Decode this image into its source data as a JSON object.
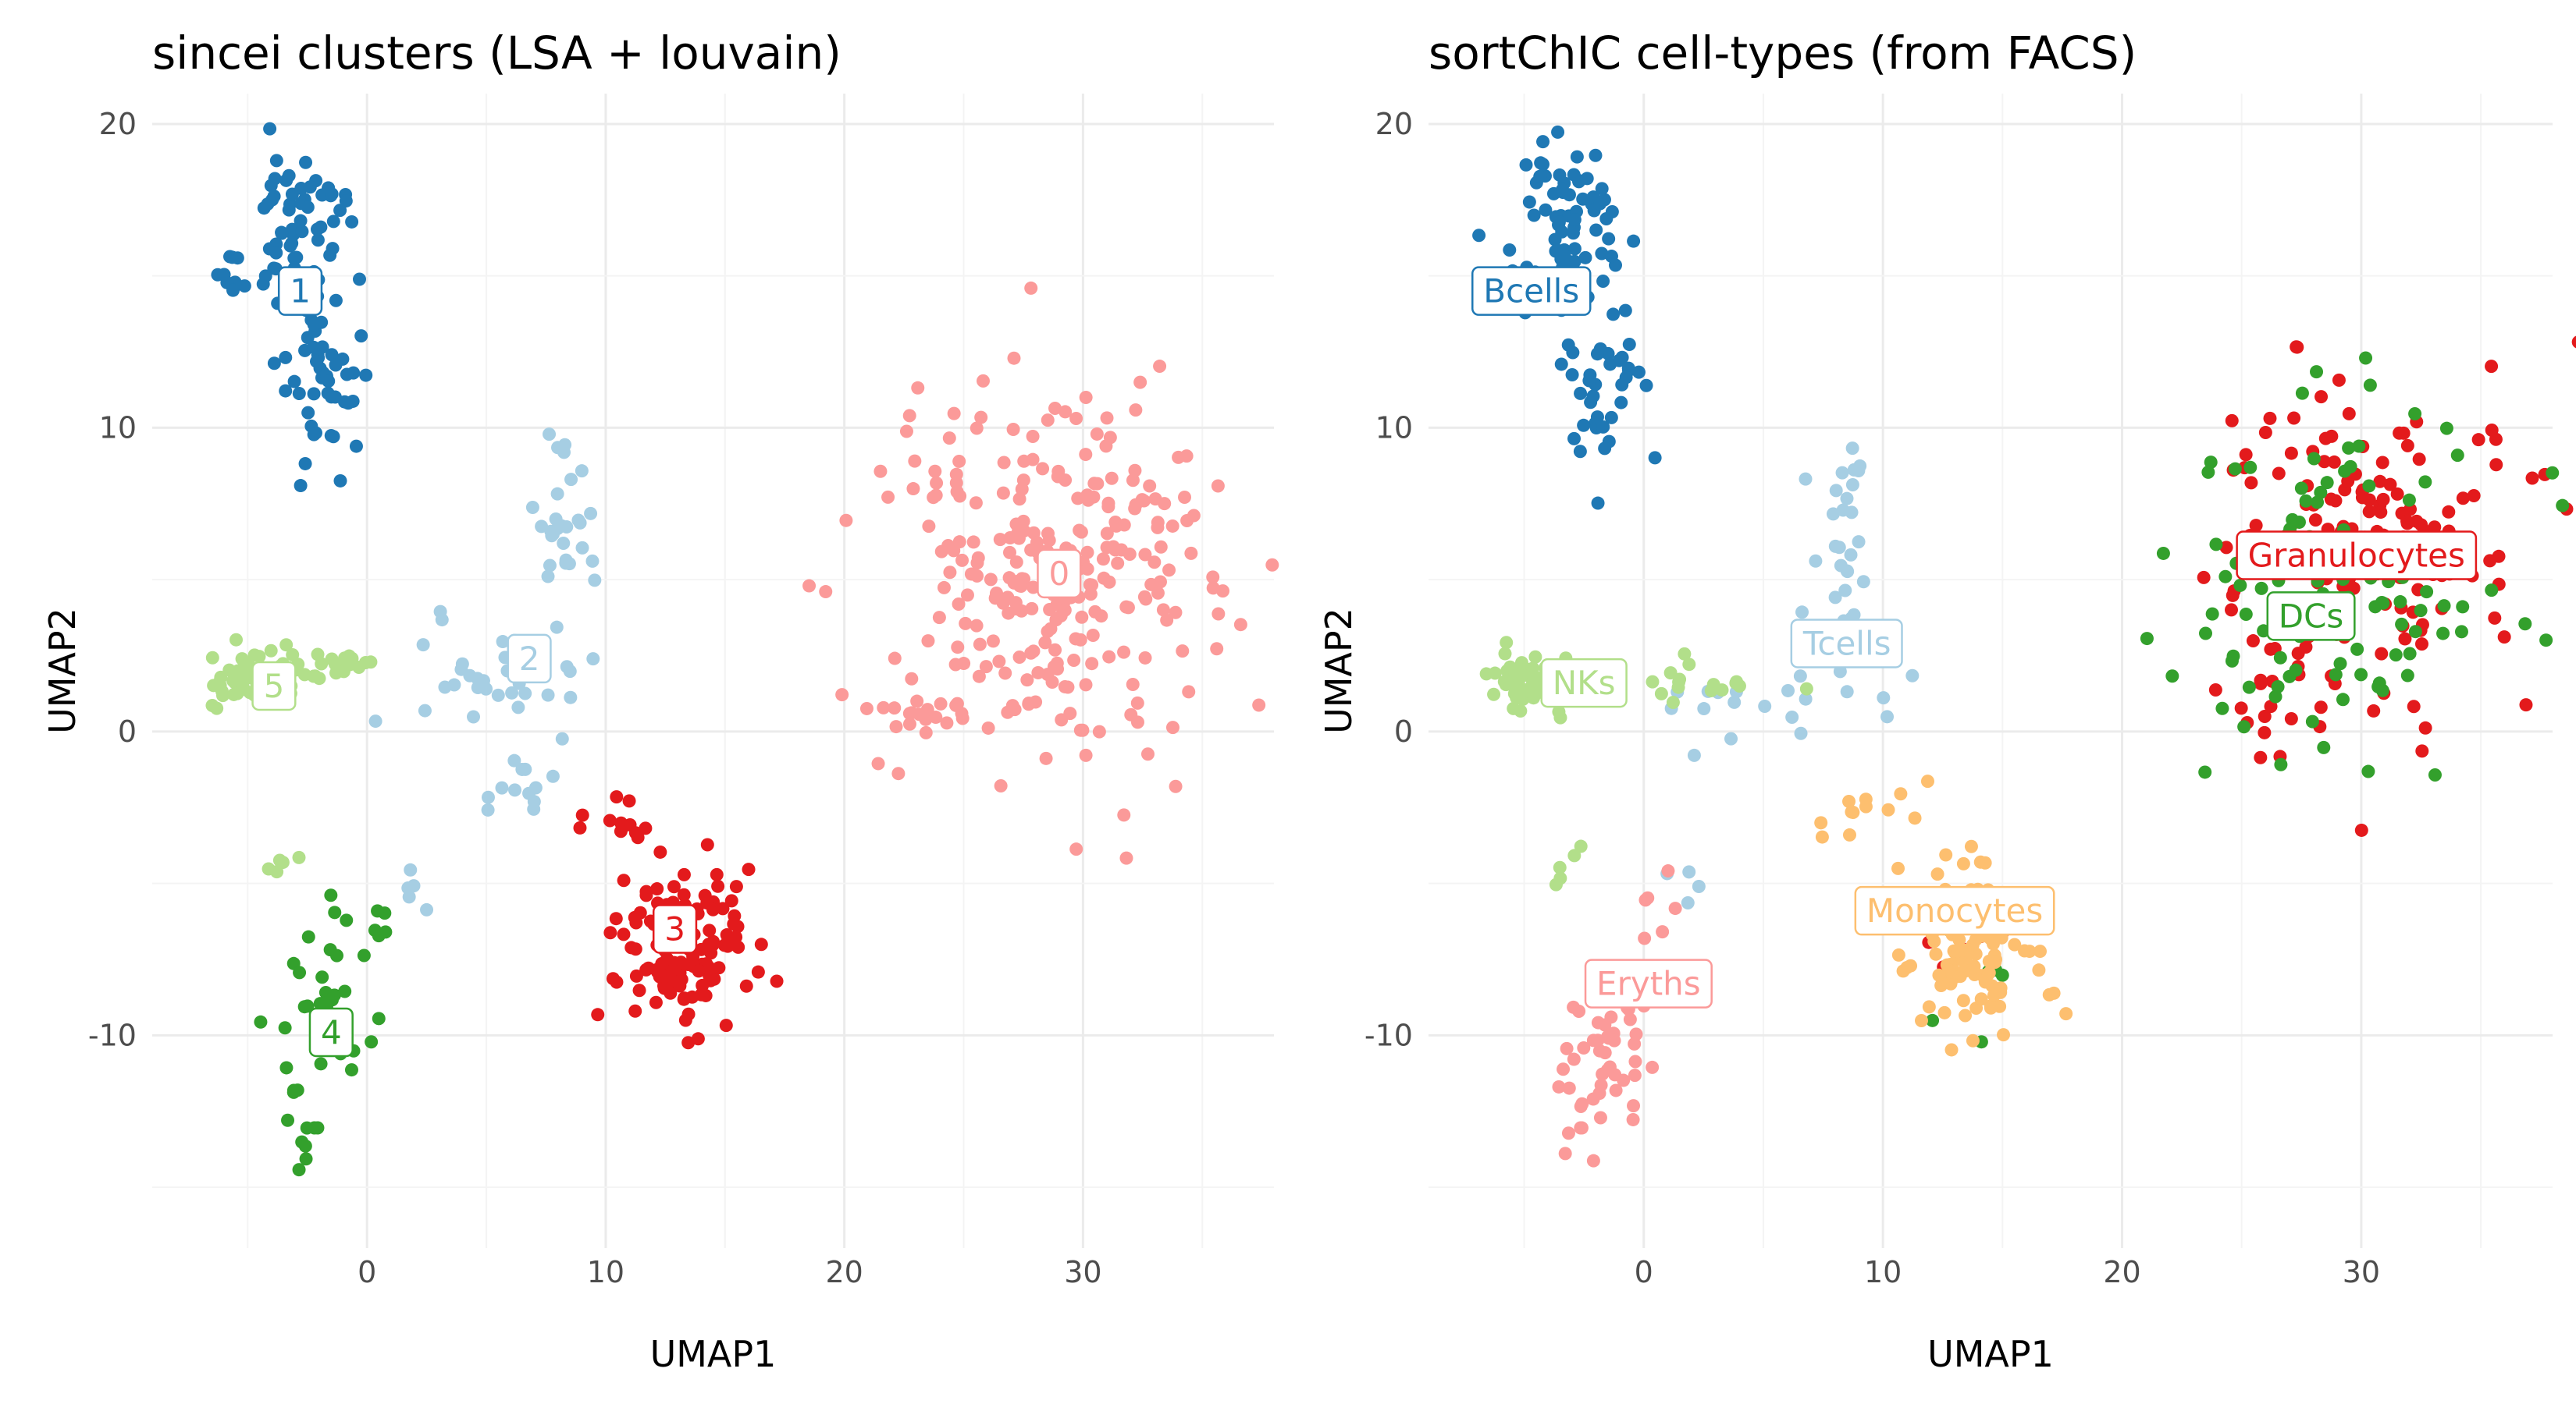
{
  "chart_data": [
    {
      "type": "scatter",
      "title": "sincei clusters (LSA + louvain)",
      "xlabel": "UMAP1",
      "ylabel": "UMAP2",
      "xlim": [
        -9,
        38
      ],
      "ylim": [
        -17,
        21
      ],
      "x_ticks": [
        0,
        10,
        20,
        30
      ],
      "y_ticks": [
        -10,
        0,
        10,
        20
      ],
      "grid": true,
      "legend": "none",
      "groups": [
        {
          "name": "1",
          "color": "#1f78b4",
          "label_x": -2.8,
          "label_y": 14.5,
          "blobs": [
            {
              "cx": -3.0,
              "cy": 16.5,
              "sx": 1.0,
              "sy": 1.6,
              "n": 70
            },
            {
              "cx": -2.0,
              "cy": 11.5,
              "sx": 0.9,
              "sy": 1.6,
              "n": 45
            },
            {
              "cx": -5.5,
              "cy": 15.0,
              "sx": 0.6,
              "sy": 0.5,
              "n": 8
            }
          ]
        },
        {
          "name": "2",
          "color": "#a6cee3",
          "label_x": 6.8,
          "label_y": 2.4,
          "blobs": [
            {
              "cx": 8.2,
              "cy": 6.5,
              "sx": 0.6,
              "sy": 1.6,
              "n": 30
            },
            {
              "cx": 5.5,
              "cy": 1.8,
              "sx": 2.6,
              "sy": 0.9,
              "n": 32
            },
            {
              "cx": 6.5,
              "cy": -1.8,
              "sx": 0.9,
              "sy": 0.5,
              "n": 12
            },
            {
              "cx": 1.5,
              "cy": -5.0,
              "sx": 0.5,
              "sy": 0.6,
              "n": 5
            }
          ]
        },
        {
          "name": "3",
          "color": "#e31a1c",
          "label_x": 12.9,
          "label_y": -6.5,
          "blobs": [
            {
              "cx": 13.3,
              "cy": -7.0,
              "sx": 1.4,
              "sy": 1.3,
              "n": 130
            },
            {
              "cx": 10.5,
              "cy": -3.0,
              "sx": 0.6,
              "sy": 0.5,
              "n": 12
            }
          ]
        },
        {
          "name": "4",
          "color": "#33a02c",
          "label_x": -1.5,
          "label_y": -9.9,
          "blobs": [
            {
              "cx": -1.7,
              "cy": -9.5,
              "sx": 0.9,
              "sy": 1.6,
              "n": 40
            },
            {
              "cx": -2.8,
              "cy": -13.3,
              "sx": 0.4,
              "sy": 1.0,
              "n": 10
            },
            {
              "cx": 0.2,
              "cy": -6.8,
              "sx": 0.3,
              "sy": 0.5,
              "n": 5
            }
          ]
        },
        {
          "name": "5",
          "color": "#b2df8a",
          "label_x": -3.9,
          "label_y": 1.5,
          "blobs": [
            {
              "cx": -4.8,
              "cy": 1.7,
              "sx": 1.0,
              "sy": 0.45,
              "n": 55
            },
            {
              "cx": -1.5,
              "cy": 2.2,
              "sx": 1.0,
              "sy": 0.3,
              "n": 20
            },
            {
              "cx": -3.5,
              "cy": -4.0,
              "sx": 0.4,
              "sy": 0.6,
              "n": 5
            }
          ]
        },
        {
          "name": "0",
          "color": "#fb9a99",
          "label_x": 29.0,
          "label_y": 5.2,
          "blobs": [
            {
              "cx": 28.8,
              "cy": 5.0,
              "sx": 3.5,
              "sy": 3.0,
              "n": 280
            },
            {
              "cx": 23.0,
              "cy": 0.7,
              "sx": 1.2,
              "sy": 0.5,
              "n": 12
            }
          ]
        }
      ]
    },
    {
      "type": "scatter",
      "title": "sortChIC cell-types (from FACS)",
      "xlabel": "UMAP1",
      "ylabel": "UMAP2",
      "xlim": [
        -9,
        38
      ],
      "ylim": [
        -17,
        21
      ],
      "x_ticks": [
        0,
        10,
        20,
        30
      ],
      "y_ticks": [
        -10,
        0,
        10,
        20
      ],
      "grid": true,
      "legend": "none",
      "groups": [
        {
          "name": "Bcells",
          "color": "#1f78b4",
          "label_x": -4.7,
          "label_y": 14.5,
          "blobs": [
            {
              "cx": -3.0,
              "cy": 16.5,
              "sx": 1.0,
              "sy": 1.6,
              "n": 65
            },
            {
              "cx": -2.0,
              "cy": 11.5,
              "sx": 0.9,
              "sy": 1.6,
              "n": 40
            },
            {
              "cx": -5.5,
              "cy": 15.0,
              "sx": 0.6,
              "sy": 0.5,
              "n": 7
            }
          ]
        },
        {
          "name": "Tcells",
          "color": "#a6cee3",
          "label_x": 8.5,
          "label_y": 2.9,
          "blobs": [
            {
              "cx": 8.2,
              "cy": 6.5,
              "sx": 0.6,
              "sy": 1.6,
              "n": 28
            },
            {
              "cx": 7.0,
              "cy": 1.5,
              "sx": 2.6,
              "sy": 1.0,
              "n": 20
            },
            {
              "cx": 1.5,
              "cy": -4.8,
              "sx": 0.5,
              "sy": 0.6,
              "n": 4
            }
          ]
        },
        {
          "name": "Granulocytes",
          "color": "#e31a1c",
          "label_x": 29.8,
          "label_y": 5.8,
          "blobs": [
            {
              "cx": 30.0,
              "cy": 6.5,
              "sx": 3.3,
              "sy": 3.0,
              "n": 150
            },
            {
              "cx": 25.5,
              "cy": 0.5,
              "sx": 1.6,
              "sy": 0.9,
              "n": 14
            },
            {
              "cx": 13.5,
              "cy": -7.0,
              "sx": 1.2,
              "sy": 1.0,
              "n": 6
            }
          ]
        },
        {
          "name": "DCs",
          "color": "#33a02c",
          "label_x": 27.9,
          "label_y": 3.8,
          "blobs": [
            {
              "cx": 29.0,
              "cy": 5.0,
              "sx": 3.2,
              "sy": 3.0,
              "n": 120
            },
            {
              "cx": 14.0,
              "cy": -7.8,
              "sx": 1.0,
              "sy": 1.0,
              "n": 6
            }
          ]
        },
        {
          "name": "NKs",
          "color": "#b2df8a",
          "label_x": -2.5,
          "label_y": 1.6,
          "blobs": [
            {
              "cx": -4.8,
              "cy": 1.7,
              "sx": 1.0,
              "sy": 0.45,
              "n": 55
            },
            {
              "cx": 2.0,
              "cy": 1.5,
              "sx": 2.0,
              "sy": 0.6,
              "n": 18
            },
            {
              "cx": -3.5,
              "cy": -4.0,
              "sx": 0.4,
              "sy": 0.6,
              "n": 5
            }
          ]
        },
        {
          "name": "Monocytes",
          "color": "#fdbf6f",
          "label_x": 13.0,
          "label_y": -5.9,
          "blobs": [
            {
              "cx": 13.8,
              "cy": -7.2,
              "sx": 1.3,
              "sy": 1.5,
              "n": 110
            },
            {
              "cx": 10.0,
              "cy": -2.5,
              "sx": 1.4,
              "sy": 0.6,
              "n": 12
            }
          ]
        },
        {
          "name": "Eryths",
          "color": "#fb9a99",
          "label_x": 0.2,
          "label_y": -8.3,
          "blobs": [
            {
              "cx": -1.5,
              "cy": -10.5,
              "sx": 1.0,
              "sy": 1.3,
              "n": 40
            },
            {
              "cx": -3.0,
              "cy": -13.5,
              "sx": 0.4,
              "sy": 1.0,
              "n": 8
            },
            {
              "cx": 0.3,
              "cy": -6.5,
              "sx": 0.5,
              "sy": 0.8,
              "n": 6
            }
          ]
        }
      ]
    }
  ]
}
